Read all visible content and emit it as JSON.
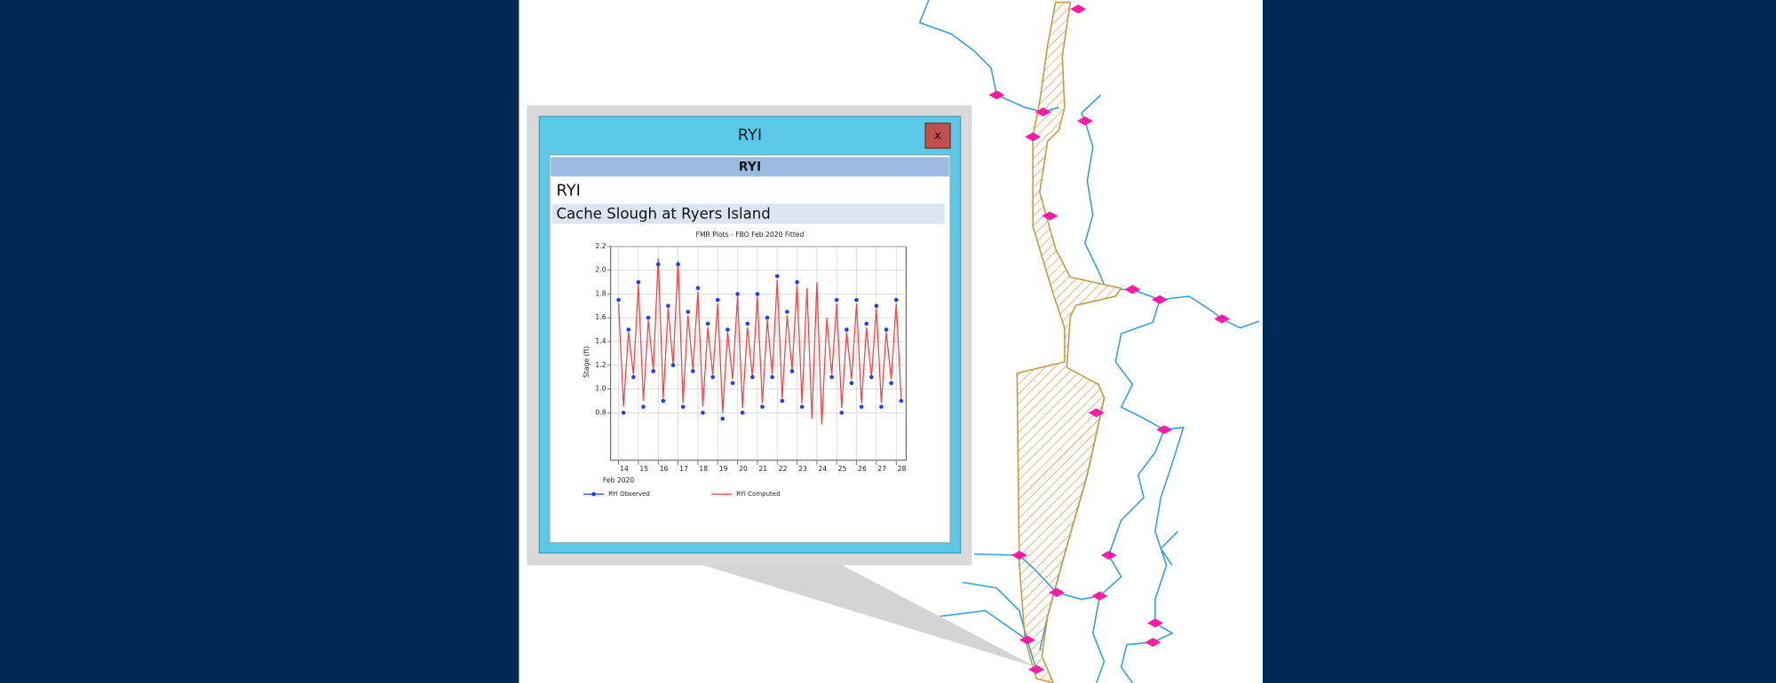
{
  "window": {
    "title": "RYI",
    "close": "x"
  },
  "panel": {
    "header": "RYI",
    "station_id": "RYI",
    "station_name": "Cache Slough at Ryers Island"
  },
  "chart_data": {
    "type": "line",
    "title": "FMR Plots - FBO Feb 2020 Fitted",
    "y_label": "Stage (ft)",
    "x_label": "Feb 2020",
    "x": [
      14,
      14.25,
      14.5,
      14.75,
      15,
      15.25,
      15.5,
      15.75,
      16,
      16.25,
      16.5,
      16.75,
      17,
      17.25,
      17.5,
      17.75,
      18,
      18.25,
      18.5,
      18.75,
      19,
      19.25,
      19.5,
      19.75,
      20,
      20.25,
      20.5,
      20.75,
      21,
      21.25,
      21.5,
      21.75,
      22,
      22.25,
      22.5,
      22.75,
      23,
      23.25,
      23.5,
      23.75,
      24,
      24.25,
      24.5,
      24.75,
      25,
      25.25,
      25.5,
      25.75,
      26,
      26.25,
      26.5,
      26.75,
      27,
      27.25,
      27.5,
      27.75,
      28,
      28.25
    ],
    "series": [
      {
        "name": "RYI Observed",
        "color": "#1f3cff",
        "style": "markers",
        "values": [
          1.75,
          0.8,
          1.5,
          1.1,
          1.9,
          0.85,
          1.6,
          1.15,
          2.05,
          0.9,
          1.7,
          1.2,
          2.05,
          0.85,
          1.65,
          1.15,
          1.85,
          0.8,
          1.55,
          1.1,
          1.75,
          0.75,
          1.5,
          1.05,
          1.8,
          0.8,
          1.55,
          1.1,
          1.8,
          0.85,
          1.6,
          1.1,
          1.95,
          0.9,
          1.65,
          1.15,
          1.9,
          0.85,
          null,
          null,
          null,
          null,
          null,
          1.1,
          1.75,
          0.8,
          1.5,
          1.05,
          1.75,
          0.85,
          1.55,
          1.1,
          1.7,
          0.85,
          1.5,
          1.05,
          1.75,
          0.9
        ]
      },
      {
        "name": "RYI Computed",
        "color": "#ff4040",
        "style": "line",
        "values": [
          1.72,
          0.85,
          1.48,
          1.12,
          1.88,
          0.9,
          1.58,
          1.16,
          2.1,
          0.92,
          1.68,
          1.2,
          2.08,
          0.88,
          1.62,
          1.16,
          1.82,
          0.85,
          1.52,
          1.12,
          1.72,
          0.8,
          1.48,
          1.08,
          1.78,
          0.84,
          1.52,
          1.1,
          1.78,
          0.88,
          1.58,
          1.12,
          1.92,
          0.92,
          1.62,
          1.16,
          1.88,
          0.88,
          1.85,
          0.75,
          1.9,
          0.7,
          1.6,
          1.12,
          1.72,
          0.84,
          1.48,
          1.08,
          1.72,
          0.88,
          1.52,
          1.1,
          1.68,
          0.88,
          1.48,
          1.08,
          1.72,
          0.92
        ]
      }
    ],
    "xlim": [
      13.6,
      28.5
    ],
    "xticks": [
      14,
      15,
      16,
      17,
      18,
      19,
      20,
      21,
      22,
      23,
      24,
      25,
      26,
      27,
      28
    ],
    "ylim": [
      0.4,
      2.2
    ],
    "yticks": [
      0.8,
      {
        "value": 1,
        "label": "1.0"
      },
      1.2,
      1.4,
      1.6,
      1.8,
      {
        "value": 2,
        "label": "2.0"
      },
      2.2
    ],
    "grid": true
  }
}
